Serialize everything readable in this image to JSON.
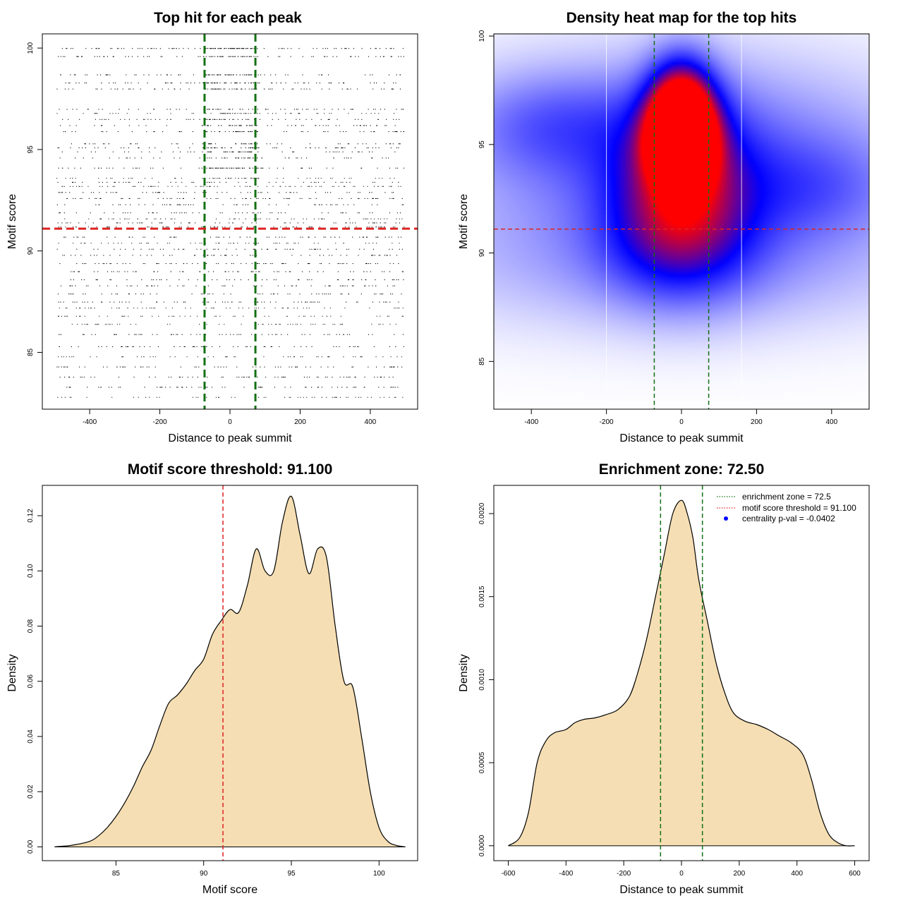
{
  "colors": {
    "threshold": "#dd2222",
    "zone": "#137013",
    "fill": "#f5deb3",
    "heat_low": "#ffffff",
    "heat_mid": "#0000ff",
    "heat_high": "#ff0000",
    "centrality_dot": "#0000ff"
  },
  "chart_data": [
    {
      "type": "scatter",
      "title": "Top hit for each peak",
      "xlabel": "Distance to peak summit",
      "ylabel": "Motif score",
      "xlim": [
        -535,
        535
      ],
      "ylim": [
        82.2,
        100.7
      ],
      "xticks": [
        -400,
        -200,
        0,
        200,
        400
      ],
      "yticks": [
        85,
        90,
        95,
        100
      ],
      "threshold": 91.1,
      "zone": [
        -72.5,
        72.5
      ],
      "score_levels": [
        100,
        99.6,
        98.7,
        98.3,
        98.0,
        97.0,
        96.8,
        96.5,
        96.2,
        95.9,
        95.3,
        95.1,
        94.9,
        94.6,
        94.1,
        93.6,
        93.4,
        93.2,
        92.9,
        92.6,
        92.3,
        91.9,
        91.6,
        91.4,
        91.2,
        90.7,
        90.4,
        90.1,
        89.8,
        89.4,
        89.0,
        88.6,
        88.3,
        87.9,
        87.5,
        87.2,
        86.8,
        86.4,
        85.9,
        85.3,
        84.8,
        84.3,
        83.8,
        83.3,
        82.8
      ],
      "n_points": 3200
    },
    {
      "type": "heatmap",
      "title": "Density heat map for the top hits",
      "xlabel": "Distance to peak summit",
      "ylabel": "Motif score",
      "xlim": [
        -500,
        500
      ],
      "ylim": [
        82.8,
        100.1
      ],
      "xticks": [
        -400,
        -200,
        0,
        200,
        400
      ],
      "yticks": [
        85,
        90,
        95,
        100
      ],
      "threshold": 91.1,
      "zone": [
        -72.5,
        72.5
      ],
      "white_lines": [
        -200,
        160
      ],
      "blobs": [
        {
          "x": 0,
          "y": 96.6,
          "sx": 60,
          "sy": 1.6,
          "w": 1.0
        },
        {
          "x": 0,
          "y": 95.1,
          "sx": 60,
          "sy": 1.3,
          "w": 0.9
        },
        {
          "x": 0,
          "y": 93.5,
          "sx": 120,
          "sy": 2.5,
          "w": 0.55
        },
        {
          "x": 0,
          "y": 90.5,
          "sx": 140,
          "sy": 2.0,
          "w": 0.35
        },
        {
          "x": 0,
          "y": 94.5,
          "sx": 420,
          "sy": 3.0,
          "w": 0.35
        },
        {
          "x": -350,
          "y": 96.0,
          "sx": 160,
          "sy": 1.6,
          "w": 0.2
        },
        {
          "x": 350,
          "y": 93.0,
          "sx": 160,
          "sy": 1.6,
          "w": 0.18
        },
        {
          "x": 0,
          "y": 89.5,
          "sx": 480,
          "sy": 2.2,
          "w": 0.18
        }
      ]
    },
    {
      "type": "area",
      "title": "Motif score threshold: 91.100",
      "xlabel": "Motif score",
      "ylabel": "Density",
      "xlim": [
        80.8,
        102.2
      ],
      "ylim": [
        -0.005,
        0.131
      ],
      "xticks": [
        85,
        90,
        95,
        100
      ],
      "yticks": [
        "0.00",
        "0.02",
        "0.04",
        "0.06",
        "0.08",
        "0.10",
        "0.12"
      ],
      "threshold": 91.1,
      "x": [
        81.5,
        82.5,
        83.5,
        84.0,
        84.5,
        85.0,
        85.5,
        86.0,
        86.5,
        87.0,
        87.5,
        88.0,
        88.5,
        89.0,
        89.5,
        90.0,
        90.5,
        91.0,
        91.5,
        92.0,
        92.5,
        93.0,
        93.5,
        94.0,
        94.5,
        95.0,
        95.5,
        96.0,
        96.5,
        97.0,
        97.5,
        98.0,
        98.5,
        99.0,
        99.5,
        100.0,
        100.5,
        101.0,
        101.5
      ],
      "y": [
        0.0,
        0.0006,
        0.002,
        0.004,
        0.007,
        0.011,
        0.016,
        0.022,
        0.029,
        0.035,
        0.044,
        0.052,
        0.055,
        0.059,
        0.064,
        0.068,
        0.077,
        0.082,
        0.086,
        0.085,
        0.095,
        0.108,
        0.1,
        0.1,
        0.118,
        0.127,
        0.113,
        0.099,
        0.108,
        0.105,
        0.08,
        0.06,
        0.058,
        0.04,
        0.02,
        0.007,
        0.002,
        0.0005,
        0.0
      ]
    },
    {
      "type": "area",
      "title": "Enrichment zone: 72.50",
      "xlabel": "Distance to peak summit",
      "ylabel": "Density",
      "xlim": [
        -650,
        650
      ],
      "ylim": [
        -9e-05,
        0.00217
      ],
      "xticks": [
        -600,
        -400,
        -200,
        0,
        200,
        400,
        600
      ],
      "yticks": [
        "0.0000",
        "0.0005",
        "0.0010",
        "0.0015",
        "0.0020"
      ],
      "zone": [
        -72.5,
        72.5
      ],
      "x": [
        -600,
        -560,
        -530,
        -500,
        -470,
        -440,
        -400,
        -370,
        -340,
        -300,
        -260,
        -220,
        -180,
        -150,
        -120,
        -90,
        -60,
        -30,
        0,
        20,
        40,
        60,
        90,
        120,
        150,
        180,
        220,
        260,
        300,
        340,
        380,
        420,
        450,
        480,
        510,
        540,
        570,
        600
      ],
      "y": [
        0.0,
        5e-05,
        0.0002,
        0.0005,
        0.00063,
        0.00068,
        0.0007,
        0.00074,
        0.00076,
        0.00077,
        0.00079,
        0.00082,
        0.0009,
        0.00105,
        0.00125,
        0.0015,
        0.00175,
        0.002,
        0.00208,
        0.002,
        0.00185,
        0.0016,
        0.00135,
        0.0011,
        0.00092,
        0.0008,
        0.00075,
        0.00073,
        0.0007,
        0.00066,
        0.00062,
        0.00055,
        0.0004,
        0.0002,
        7e-05,
        2e-05,
        0.0,
        0.0
      ],
      "legend": [
        {
          "label": "enrichment zone = 72.5",
          "kind": "dotted-line",
          "color": "#137013"
        },
        {
          "label": "motif score threshold = 91.100",
          "kind": "dotted-line",
          "color": "#dd2222"
        },
        {
          "label": "centrality p-val = -0.0402",
          "kind": "dot",
          "color": "#0000ff"
        }
      ]
    }
  ]
}
